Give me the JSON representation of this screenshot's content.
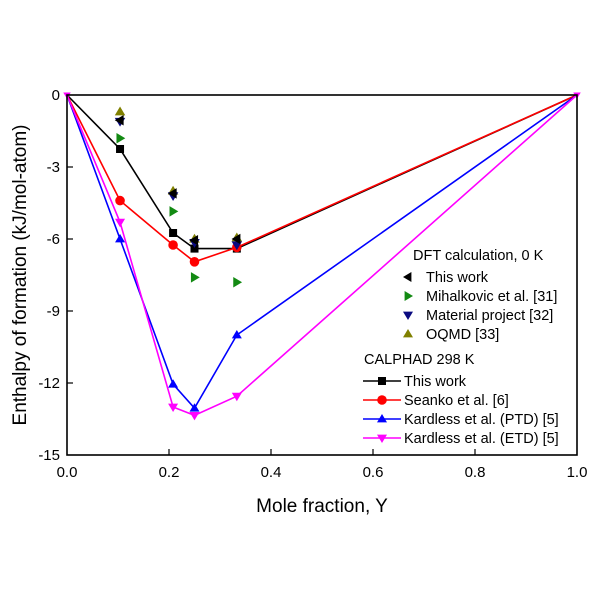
{
  "chart_data": {
    "type": "line",
    "title": "",
    "xlabel": "Mole  fraction, Y",
    "ylabel": "Enthalpy of formation (kJ/mol-atom)",
    "xlim": [
      0.0,
      1.0
    ],
    "ylim": [
      -15,
      0
    ],
    "xticks": [
      "0.0",
      "0.2",
      "0.4",
      "0.6",
      "0.8",
      "1.0"
    ],
    "xtick_values": [
      0.0,
      0.2,
      0.4,
      0.6,
      0.8,
      1.0
    ],
    "yticks": [
      "0",
      "-3",
      "-6",
      "-9",
      "-12",
      "-15"
    ],
    "ytick_values": [
      0,
      -3,
      -6,
      -9,
      -12,
      -15
    ],
    "grid": false,
    "legend_placement": "bottom-right",
    "legend_groups": [
      {
        "title": "DFT calculation, 0 K"
      },
      {
        "title": "CALPHAD 298 K"
      }
    ],
    "scatter_series": [
      {
        "name": "This work",
        "group": 0,
        "color": "#000000",
        "marker": "triangle-left",
        "x": [
          0.104,
          0.208,
          0.25,
          0.333
        ],
        "y": [
          -1.05,
          -4.1,
          -6.05,
          -6.0
        ]
      },
      {
        "name": " Mihalkovic et al. [31]",
        "group": 0,
        "color": "#138a13",
        "marker": "triangle-right",
        "x": [
          0.104,
          0.208,
          0.25,
          0.333
        ],
        "y": [
          -1.8,
          -4.85,
          -7.6,
          -7.8
        ]
      },
      {
        "name": "Material project [32]",
        "group": 0,
        "color": "#0a0a80",
        "marker": "triangle-down",
        "x": [
          0.104,
          0.208,
          0.25,
          0.333
        ],
        "y": [
          -1.1,
          -4.2,
          -6.15,
          -6.25
        ]
      },
      {
        "name": " OQMD [33]",
        "group": 0,
        "color": "#808000",
        "marker": "triangle-up",
        "x": [
          0.104,
          0.208,
          0.25,
          0.333
        ],
        "y": [
          -0.7,
          -4.0,
          -6.0,
          -5.95
        ]
      }
    ],
    "line_series": [
      {
        "name": "This work",
        "group": 1,
        "color": "#000000",
        "marker": "square",
        "x": [
          0.0,
          0.104,
          0.208,
          0.25,
          0.333,
          1.0
        ],
        "y": [
          0,
          -2.25,
          -5.75,
          -6.4,
          -6.4,
          0
        ]
      },
      {
        "name": " Seanko et al. [6]",
        "group": 1,
        "color": "#ff0000",
        "marker": "circle",
        "x": [
          0.0,
          0.104,
          0.208,
          0.25,
          0.333,
          1.0
        ],
        "y": [
          0,
          -4.4,
          -6.25,
          -6.95,
          -6.35,
          0
        ]
      },
      {
        "name": "Kardless et al. (PTD) [5]",
        "group": 1,
        "color": "#0000ff",
        "marker": "triangle-up",
        "x": [
          0.0,
          0.104,
          0.208,
          0.25,
          0.333,
          1.0
        ],
        "y": [
          0,
          -6.0,
          -12.05,
          -13.05,
          -10.0,
          0
        ]
      },
      {
        "name": "Kardless et al. (ETD) [5]",
        "group": 1,
        "color": "#ff00ff",
        "marker": "triangle-down",
        "x": [
          0.0,
          0.104,
          0.208,
          0.25,
          0.333,
          1.0
        ],
        "y": [
          0,
          -5.3,
          -13.0,
          -13.35,
          -12.55,
          0
        ]
      }
    ]
  }
}
